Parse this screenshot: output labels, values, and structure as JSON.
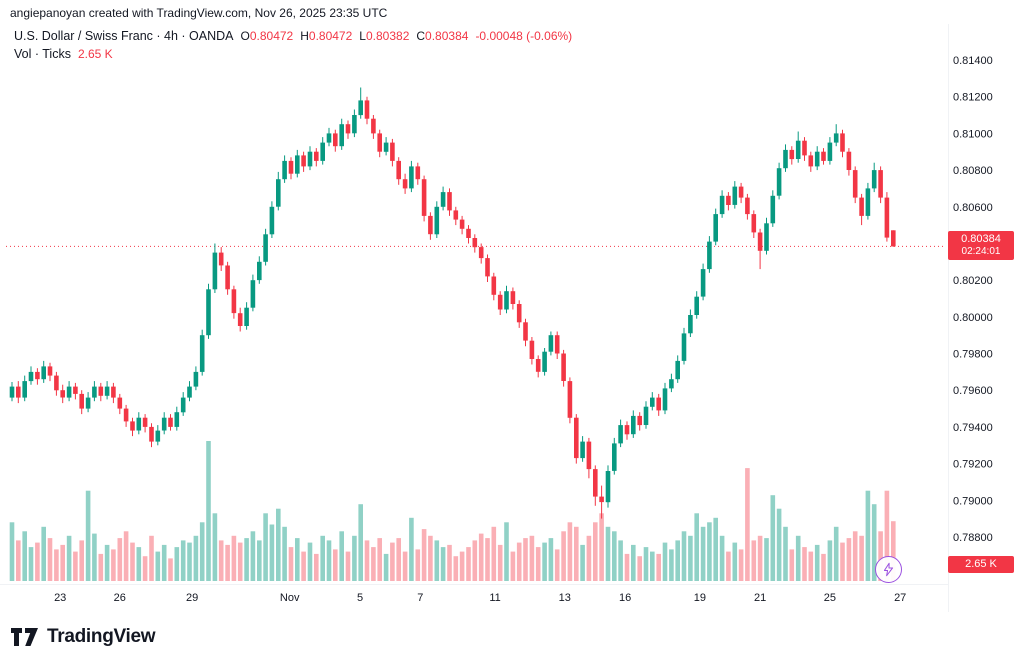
{
  "attribution": "angiepanoyan created with TradingView.com, Nov 26, 2025 23:35 UTC",
  "legend": {
    "symbol_title": "U.S. Dollar / Swiss Franc · 4h · OANDA",
    "ohlc": [
      {
        "k": "O",
        "v": "0.80472"
      },
      {
        "k": "H",
        "v": "0.80472"
      },
      {
        "k": "L",
        "v": "0.80382"
      },
      {
        "k": "C",
        "v": "0.80384"
      }
    ],
    "change": "-0.00048 (-0.06%)",
    "vol_label": "Vol · Ticks",
    "vol_value": "2.65 K"
  },
  "price_axis": {
    "labels": [
      "0.81400",
      "0.81200",
      "0.81000",
      "0.80800",
      "0.80600",
      "0.80400",
      "0.80200",
      "0.80000",
      "0.79800",
      "0.79600",
      "0.79400",
      "0.79200",
      "0.79000",
      "0.78800"
    ],
    "last_price_label": "0.80384",
    "countdown": "02:24:01"
  },
  "time_axis": {
    "labels": [
      {
        "t": "23",
        "i": 7.6
      },
      {
        "t": "26",
        "i": 17
      },
      {
        "t": "29",
        "i": 28.4
      },
      {
        "t": "Nov",
        "i": 43.8
      },
      {
        "t": "5",
        "i": 54.9
      },
      {
        "t": "7",
        "i": 64.4
      },
      {
        "t": "11",
        "i": 76.2
      },
      {
        "t": "13",
        "i": 87.2
      },
      {
        "t": "16",
        "i": 96.7
      },
      {
        "t": "19",
        "i": 108.5
      },
      {
        "t": "21",
        "i": 118
      },
      {
        "t": "25",
        "i": 129
      },
      {
        "t": "27",
        "i": 140.1
      }
    ]
  },
  "volume_axis_label": "2.65 K",
  "colors": {
    "up": "#089981",
    "down": "#f23645",
    "vol_up": "rgba(8,153,129,0.45)",
    "vol_down": "rgba(242,54,69,0.4)",
    "text": "#131722",
    "muted": "#787b86",
    "purple": "#9b51e0",
    "label_bg": "#f23645"
  },
  "icons": {
    "flash_icon": "lightning-bolt",
    "logo_icon": "tradingview-17-mark"
  },
  "footer": {
    "brand": "TradingView"
  },
  "chart_data": {
    "type": "candlestick",
    "title": "U.S. Dollar / Swiss Franc · 4h · OANDA",
    "symbol": "USD/CHF",
    "timeframe": "4h",
    "exchange": "OANDA",
    "legend_position": "top-left",
    "grid": "off",
    "ylim": [
      0.788,
      0.814
    ],
    "ohlc_last": {
      "open": 0.80472,
      "high": 0.80472,
      "low": 0.80382,
      "close": 0.80384,
      "change": -0.00048,
      "change_pct": "-0.06%"
    },
    "last_price": 0.80384,
    "volume_last_ticks": 2650,
    "price_divisor": 100000,
    "series_format": [
      "open",
      "high",
      "low",
      "close",
      "volume_ticks"
    ],
    "candles": [
      [
        79560,
        79645,
        79540,
        79620,
        2600
      ],
      [
        79620,
        79650,
        79530,
        79560,
        1800
      ],
      [
        79560,
        79680,
        79540,
        79650,
        2200
      ],
      [
        79650,
        79730,
        79630,
        79700,
        1500
      ],
      [
        79700,
        79720,
        79630,
        79660,
        1700
      ],
      [
        79660,
        79760,
        79640,
        79730,
        2400
      ],
      [
        79730,
        79750,
        79650,
        79680,
        1900
      ],
      [
        79680,
        79700,
        79570,
        79600,
        1400
      ],
      [
        79600,
        79630,
        79530,
        79560,
        1600
      ],
      [
        79560,
        79650,
        79540,
        79620,
        2000
      ],
      [
        79620,
        79640,
        79550,
        79580,
        1300
      ],
      [
        79580,
        79600,
        79470,
        79500,
        1800
      ],
      [
        79500,
        79590,
        79480,
        79560,
        4000
      ],
      [
        79560,
        79650,
        79540,
        79620,
        2100
      ],
      [
        79620,
        79640,
        79540,
        79570,
        1200
      ],
      [
        79570,
        79650,
        79550,
        79620,
        1600
      ],
      [
        79620,
        79640,
        79530,
        79560,
        1400
      ],
      [
        79560,
        79580,
        79470,
        79500,
        1900
      ],
      [
        79500,
        79520,
        79400,
        79430,
        2200
      ],
      [
        79430,
        79450,
        79350,
        79380,
        1700
      ],
      [
        79380,
        79480,
        79360,
        79450,
        1500
      ],
      [
        79450,
        79470,
        79370,
        79400,
        1100
      ],
      [
        79400,
        79420,
        79290,
        79320,
        2000
      ],
      [
        79320,
        79410,
        79300,
        79380,
        1300
      ],
      [
        79380,
        79480,
        79360,
        79450,
        1600
      ],
      [
        79450,
        79470,
        79380,
        79400,
        1000
      ],
      [
        79400,
        79510,
        79380,
        79480,
        1500
      ],
      [
        79480,
        79590,
        79460,
        79560,
        1800
      ],
      [
        79560,
        79650,
        79540,
        79620,
        1700
      ],
      [
        79620,
        79730,
        79600,
        79700,
        2000
      ],
      [
        79700,
        79930,
        79680,
        79900,
        2600
      ],
      [
        79900,
        80180,
        79880,
        80150,
        6200
      ],
      [
        80150,
        80400,
        80130,
        80350,
        3000
      ],
      [
        80350,
        80380,
        80250,
        80280,
        1800
      ],
      [
        80280,
        80300,
        80120,
        80150,
        1600
      ],
      [
        80150,
        80170,
        79990,
        80020,
        2000
      ],
      [
        80020,
        80050,
        79920,
        79950,
        1700
      ],
      [
        79950,
        80080,
        79930,
        80050,
        1900
      ],
      [
        80050,
        80230,
        80030,
        80200,
        2200
      ],
      [
        80200,
        80330,
        80180,
        80300,
        1800
      ],
      [
        80300,
        80480,
        80280,
        80450,
        3000
      ],
      [
        80450,
        80630,
        80430,
        80600,
        2500
      ],
      [
        80600,
        80790,
        80580,
        80750,
        3200
      ],
      [
        80750,
        80880,
        80730,
        80850,
        2400
      ],
      [
        80850,
        80870,
        80750,
        80780,
        1500
      ],
      [
        80780,
        80910,
        80760,
        80880,
        1900
      ],
      [
        80880,
        80900,
        80790,
        80820,
        1300
      ],
      [
        80820,
        80930,
        80800,
        80900,
        1700
      ],
      [
        80900,
        80920,
        80820,
        80850,
        1200
      ],
      [
        80850,
        80980,
        80830,
        80950,
        2000
      ],
      [
        80950,
        81030,
        80930,
        81000,
        1800
      ],
      [
        81000,
        81020,
        80900,
        80930,
        1400
      ],
      [
        80930,
        81080,
        80910,
        81050,
        2200
      ],
      [
        81050,
        81070,
        80970,
        81000,
        1300
      ],
      [
        81000,
        81130,
        80980,
        81100,
        2000
      ],
      [
        81100,
        81250,
        81080,
        81180,
        3400
      ],
      [
        81180,
        81200,
        81050,
        81080,
        1800
      ],
      [
        81080,
        81100,
        80970,
        81000,
        1500
      ],
      [
        81000,
        81020,
        80870,
        80900,
        1900
      ],
      [
        80900,
        80980,
        80880,
        80950,
        1200
      ],
      [
        80950,
        80970,
        80820,
        80850,
        1700
      ],
      [
        80850,
        80870,
        80720,
        80750,
        1900
      ],
      [
        80750,
        80780,
        80670,
        80700,
        1300
      ],
      [
        80700,
        80850,
        80680,
        80820,
        2800
      ],
      [
        80820,
        80840,
        80720,
        80750,
        1400
      ],
      [
        80750,
        80770,
        80520,
        80550,
        2300
      ],
      [
        80550,
        80570,
        80420,
        80450,
        2000
      ],
      [
        80450,
        80630,
        80430,
        80600,
        1800
      ],
      [
        80600,
        80710,
        80580,
        80680,
        1500
      ],
      [
        80680,
        80700,
        80550,
        80580,
        1600
      ],
      [
        80580,
        80600,
        80500,
        80530,
        1100
      ],
      [
        80530,
        80550,
        80450,
        80480,
        1300
      ],
      [
        80480,
        80500,
        80400,
        80430,
        1500
      ],
      [
        80430,
        80450,
        80350,
        80380,
        1800
      ],
      [
        80380,
        80400,
        80290,
        80320,
        2100
      ],
      [
        80320,
        80340,
        80190,
        80220,
        1900
      ],
      [
        80220,
        80240,
        80090,
        80120,
        2400
      ],
      [
        80120,
        80140,
        80010,
        80040,
        1600
      ],
      [
        80040,
        80170,
        80020,
        80140,
        2600
      ],
      [
        80140,
        80160,
        80040,
        80070,
        1300
      ],
      [
        80070,
        80090,
        79940,
        79970,
        1700
      ],
      [
        79970,
        79990,
        79840,
        79870,
        1900
      ],
      [
        79870,
        79890,
        79740,
        79770,
        2000
      ],
      [
        79770,
        79790,
        79670,
        79700,
        1500
      ],
      [
        79700,
        79830,
        79680,
        79810,
        1700
      ],
      [
        79810,
        79920,
        79790,
        79900,
        1900
      ],
      [
        79900,
        79920,
        79770,
        79800,
        1400
      ],
      [
        79800,
        79820,
        79620,
        79650,
        2200
      ],
      [
        79650,
        79670,
        79420,
        79450,
        2600
      ],
      [
        79450,
        79470,
        79200,
        79230,
        2400
      ],
      [
        79230,
        79350,
        79210,
        79320,
        1600
      ],
      [
        79320,
        79340,
        79120,
        79170,
        2000
      ],
      [
        79170,
        79190,
        78970,
        79020,
        2600
      ],
      [
        79020,
        79080,
        78900,
        78990,
        3000
      ],
      [
        78990,
        79190,
        78960,
        79160,
        2400
      ],
      [
        79160,
        79340,
        79140,
        79310,
        2200
      ],
      [
        79310,
        79440,
        79290,
        79410,
        1800
      ],
      [
        79410,
        79430,
        79330,
        79360,
        1200
      ],
      [
        79360,
        79490,
        79340,
        79460,
        1600
      ],
      [
        79460,
        79480,
        79380,
        79410,
        1100
      ],
      [
        79410,
        79540,
        79390,
        79510,
        1500
      ],
      [
        79510,
        79590,
        79490,
        79560,
        1300
      ],
      [
        79560,
        79580,
        79460,
        79490,
        1200
      ],
      [
        79490,
        79640,
        79470,
        79610,
        1700
      ],
      [
        79610,
        79690,
        79590,
        79660,
        1400
      ],
      [
        79660,
        79790,
        79640,
        79760,
        1800
      ],
      [
        79760,
        79940,
        79740,
        79910,
        2200
      ],
      [
        79910,
        80040,
        79890,
        80010,
        2000
      ],
      [
        80010,
        80140,
        79990,
        80110,
        3000
      ],
      [
        80110,
        80290,
        80090,
        80260,
        2400
      ],
      [
        80260,
        80440,
        80240,
        80410,
        2600
      ],
      [
        80410,
        80590,
        80390,
        80560,
        2800
      ],
      [
        80560,
        80690,
        80540,
        80660,
        2000
      ],
      [
        80660,
        80680,
        80580,
        80610,
        1300
      ],
      [
        80610,
        80740,
        80590,
        80710,
        1700
      ],
      [
        80710,
        80730,
        80620,
        80650,
        1400
      ],
      [
        80650,
        80670,
        80530,
        80560,
        5000
      ],
      [
        80560,
        80580,
        80430,
        80460,
        1800
      ],
      [
        80460,
        80480,
        80260,
        80360,
        2000
      ],
      [
        80360,
        80540,
        80340,
        80510,
        1900
      ],
      [
        80510,
        80690,
        80490,
        80660,
        3800
      ],
      [
        80660,
        80840,
        80640,
        80810,
        3200
      ],
      [
        80810,
        80940,
        80790,
        80910,
        2400
      ],
      [
        80910,
        80930,
        80830,
        80860,
        1400
      ],
      [
        80860,
        81010,
        80840,
        80960,
        2000
      ],
      [
        80960,
        80980,
        80850,
        80880,
        1500
      ],
      [
        80880,
        80900,
        80790,
        80820,
        1300
      ],
      [
        80820,
        80930,
        80800,
        80900,
        1600
      ],
      [
        80900,
        80920,
        80830,
        80850,
        1200
      ],
      [
        80850,
        80980,
        80830,
        80950,
        1800
      ],
      [
        80950,
        81050,
        80930,
        81000,
        2400
      ],
      [
        81000,
        81020,
        80870,
        80900,
        1700
      ],
      [
        80900,
        80920,
        80770,
        80800,
        1900
      ],
      [
        80800,
        80820,
        80620,
        80650,
        2200
      ],
      [
        80650,
        80670,
        80500,
        80550,
        2000
      ],
      [
        80550,
        80730,
        80530,
        80700,
        4000
      ],
      [
        80700,
        80840,
        80680,
        80800,
        3400
      ],
      [
        80800,
        80820,
        80620,
        80650,
        2200
      ],
      [
        80650,
        80680,
        80410,
        80432,
        4000
      ],
      [
        80472,
        80472,
        80382,
        80384,
        2650
      ]
    ]
  }
}
